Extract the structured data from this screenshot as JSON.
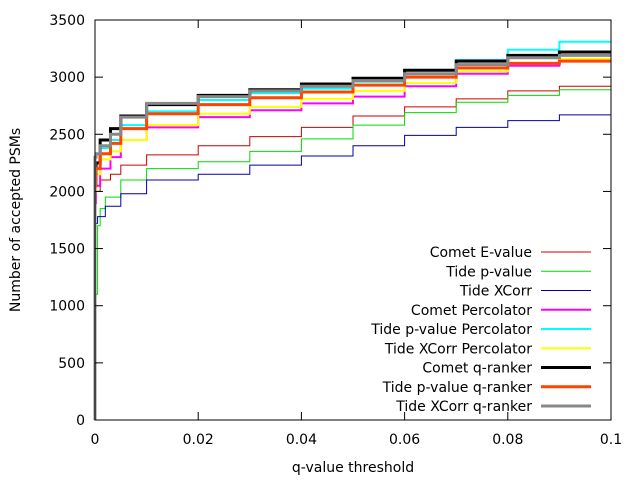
{
  "chart_data": {
    "type": "line",
    "title": "",
    "xlabel": "q-value threshold",
    "ylabel": "Number of accepted PSMs",
    "xlim": [
      0,
      0.1
    ],
    "ylim": [
      0,
      3500
    ],
    "xticks": [
      0,
      0.02,
      0.04,
      0.06,
      0.08,
      0.1
    ],
    "xtick_labels": [
      "0",
      "0.02",
      "0.04",
      "0.06",
      "0.08",
      "0.1"
    ],
    "yticks": [
      0,
      500,
      1000,
      1500,
      2000,
      2500,
      3000,
      3500
    ],
    "ytick_labels": [
      "0",
      "500",
      "1000",
      "1500",
      "2000",
      "2500",
      "3000",
      "3500"
    ],
    "grid": false,
    "legend_position": "bottom-right",
    "series": [
      {
        "name": "Comet E-value",
        "color": "#cc0000",
        "width": 1,
        "points": [
          [
            0,
            0
          ],
          [
            0.0002,
            1850
          ],
          [
            0.001,
            2000
          ],
          [
            0.003,
            2100
          ],
          [
            0.005,
            2150
          ],
          [
            0.01,
            2230
          ],
          [
            0.02,
            2320
          ],
          [
            0.03,
            2400
          ],
          [
            0.04,
            2480
          ],
          [
            0.05,
            2560
          ],
          [
            0.06,
            2660
          ],
          [
            0.07,
            2740
          ],
          [
            0.08,
            2810
          ],
          [
            0.09,
            2880
          ],
          [
            0.1,
            2920
          ]
        ]
      },
      {
        "name": "Tide p-value",
        "color": "#00dd00",
        "width": 1,
        "points": [
          [
            0,
            0
          ],
          [
            0.0005,
            1100
          ],
          [
            0.001,
            1700
          ],
          [
            0.002,
            1850
          ],
          [
            0.005,
            1950
          ],
          [
            0.01,
            2100
          ],
          [
            0.02,
            2200
          ],
          [
            0.03,
            2260
          ],
          [
            0.04,
            2350
          ],
          [
            0.05,
            2460
          ],
          [
            0.06,
            2580
          ],
          [
            0.07,
            2690
          ],
          [
            0.08,
            2780
          ],
          [
            0.09,
            2840
          ],
          [
            0.1,
            2890
          ]
        ]
      },
      {
        "name": "Tide XCorr",
        "color": "#0000aa",
        "width": 1,
        "points": [
          [
            0,
            0
          ],
          [
            0.0005,
            1720
          ],
          [
            0.002,
            1780
          ],
          [
            0.005,
            1870
          ],
          [
            0.01,
            1980
          ],
          [
            0.02,
            2100
          ],
          [
            0.03,
            2150
          ],
          [
            0.04,
            2230
          ],
          [
            0.05,
            2310
          ],
          [
            0.06,
            2400
          ],
          [
            0.07,
            2490
          ],
          [
            0.08,
            2560
          ],
          [
            0.09,
            2620
          ],
          [
            0.1,
            2670
          ]
        ]
      },
      {
        "name": "Comet Percolator",
        "color": "#ff00ff",
        "width": 2,
        "points": [
          [
            0,
            0
          ],
          [
            0.0002,
            1900
          ],
          [
            0.001,
            2050
          ],
          [
            0.003,
            2200
          ],
          [
            0.005,
            2300
          ],
          [
            0.01,
            2450
          ],
          [
            0.02,
            2560
          ],
          [
            0.03,
            2650
          ],
          [
            0.04,
            2710
          ],
          [
            0.05,
            2770
          ],
          [
            0.06,
            2830
          ],
          [
            0.07,
            2920
          ],
          [
            0.08,
            3030
          ],
          [
            0.09,
            3100
          ],
          [
            0.1,
            3150
          ]
        ]
      },
      {
        "name": "Tide p-value Percolator",
        "color": "#00ffff",
        "width": 2,
        "points": [
          [
            0,
            0
          ],
          [
            0.0002,
            2000
          ],
          [
            0.001,
            2200
          ],
          [
            0.003,
            2380
          ],
          [
            0.005,
            2450
          ],
          [
            0.01,
            2580
          ],
          [
            0.02,
            2700
          ],
          [
            0.03,
            2800
          ],
          [
            0.04,
            2860
          ],
          [
            0.05,
            2900
          ],
          [
            0.06,
            2960
          ],
          [
            0.07,
            3060
          ],
          [
            0.08,
            3150
          ],
          [
            0.09,
            3240
          ],
          [
            0.1,
            3310
          ]
        ]
      },
      {
        "name": "Tide XCorr Percolator",
        "color": "#ffff00",
        "width": 2,
        "points": [
          [
            0,
            0
          ],
          [
            0.0002,
            2000
          ],
          [
            0.001,
            2150
          ],
          [
            0.003,
            2280
          ],
          [
            0.005,
            2350
          ],
          [
            0.01,
            2450
          ],
          [
            0.02,
            2580
          ],
          [
            0.03,
            2680
          ],
          [
            0.04,
            2740
          ],
          [
            0.05,
            2810
          ],
          [
            0.06,
            2880
          ],
          [
            0.07,
            2950
          ],
          [
            0.08,
            3050
          ],
          [
            0.09,
            3120
          ],
          [
            0.1,
            3160
          ]
        ]
      },
      {
        "name": "Comet q-ranker",
        "color": "#000000",
        "width": 3,
        "points": [
          [
            0,
            0
          ],
          [
            0.0002,
            2100
          ],
          [
            0.001,
            2250
          ],
          [
            0.003,
            2450
          ],
          [
            0.005,
            2550
          ],
          [
            0.01,
            2660
          ],
          [
            0.02,
            2760
          ],
          [
            0.03,
            2840
          ],
          [
            0.04,
            2890
          ],
          [
            0.05,
            2940
          ],
          [
            0.06,
            2990
          ],
          [
            0.07,
            3060
          ],
          [
            0.08,
            3140
          ],
          [
            0.09,
            3190
          ],
          [
            0.1,
            3220
          ]
        ]
      },
      {
        "name": "Tide p-value q-ranker",
        "color": "#ff4400",
        "width": 3,
        "points": [
          [
            0,
            0
          ],
          [
            0.0002,
            2050
          ],
          [
            0.001,
            2200
          ],
          [
            0.003,
            2330
          ],
          [
            0.005,
            2420
          ],
          [
            0.01,
            2550
          ],
          [
            0.02,
            2680
          ],
          [
            0.03,
            2760
          ],
          [
            0.04,
            2820
          ],
          [
            0.05,
            2870
          ],
          [
            0.06,
            2930
          ],
          [
            0.07,
            3000
          ],
          [
            0.08,
            3080
          ],
          [
            0.09,
            3120
          ],
          [
            0.1,
            3140
          ]
        ]
      },
      {
        "name": "Tide XCorr q-ranker",
        "color": "#888888",
        "width": 3,
        "points": [
          [
            0,
            0
          ],
          [
            0.0002,
            2300
          ],
          [
            0.001,
            2330
          ],
          [
            0.003,
            2400
          ],
          [
            0.005,
            2500
          ],
          [
            0.01,
            2650
          ],
          [
            0.02,
            2770
          ],
          [
            0.03,
            2830
          ],
          [
            0.04,
            2880
          ],
          [
            0.05,
            2920
          ],
          [
            0.06,
            2970
          ],
          [
            0.07,
            3030
          ],
          [
            0.08,
            3110
          ],
          [
            0.09,
            3170
          ],
          [
            0.1,
            3190
          ]
        ]
      }
    ]
  }
}
